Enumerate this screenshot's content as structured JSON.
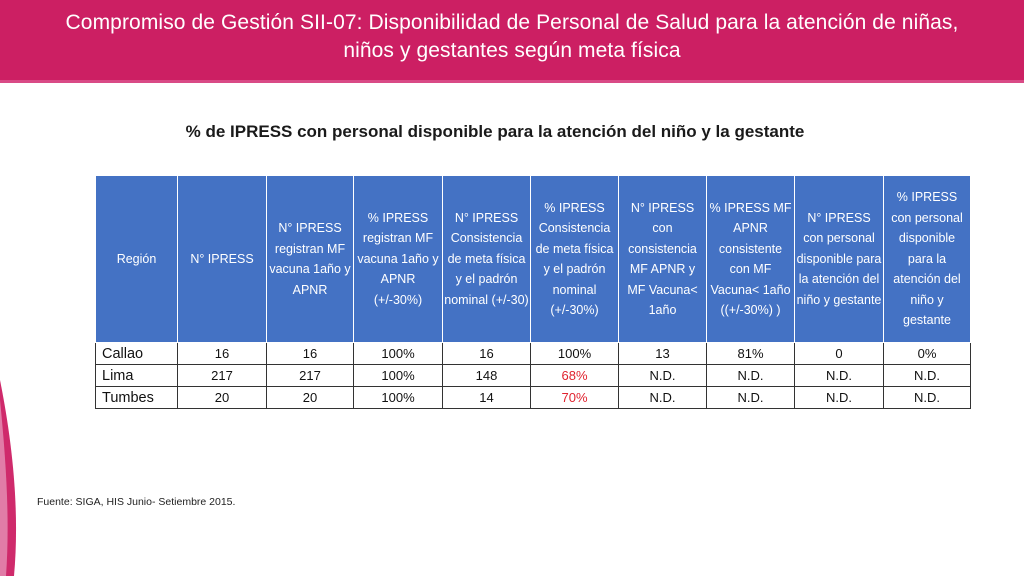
{
  "banner": {
    "title_line1": "Compromiso de Gestión SII-07: Disponibilidad de Personal de Salud para la atención de niñas,",
    "title_line2": "niños y gestantes según meta física",
    "color": "#cc1f63"
  },
  "subtitle": "% de IPRESS con personal disponible para la atención del niño y la gestante",
  "table": {
    "header_color": "#4472c4",
    "highlight_color": "#e0232f",
    "headers": [
      "Región",
      "N° IPRESS",
      "N° IPRESS registran MF vacuna 1año y APNR",
      "% IPRESS registran MF vacuna 1año y APNR (+/-30%)",
      "N° IPRESS Consistencia de meta física y el padrón nominal (+/-30)",
      "% IPRESS Consistencia de meta física y el padrón nominal (+/-30%)",
      "N°  IPRESS con consistencia MF APNR y MF Vacuna< 1año",
      "% IPRESS MF APNR consistente con MF Vacuna< 1año ((+/-30%) )",
      "N° IPRESS con personal disponible para la atención del niño y gestante",
      "% IPRESS con personal disponible para la atención del niño y gestante"
    ],
    "rows": [
      [
        "Callao",
        "16",
        "16",
        "100%",
        "16",
        "100%",
        "13",
        "81%",
        "0",
        "0%"
      ],
      [
        "Lima",
        "217",
        "217",
        "100%",
        "148",
        "68%",
        "N.D.",
        "N.D.",
        "N.D.",
        "N.D."
      ],
      [
        "Tumbes",
        "20",
        "20",
        "100%",
        "14",
        "70%",
        "N.D.",
        "N.D.",
        "N.D.",
        "N.D."
      ]
    ],
    "highlighted_cells": [
      "Lima % IPRESS Consistencia",
      "Tumbes % IPRESS Consistencia"
    ]
  },
  "source": "Fuente: SIGA, HIS  Junio- Setiembre 2015."
}
